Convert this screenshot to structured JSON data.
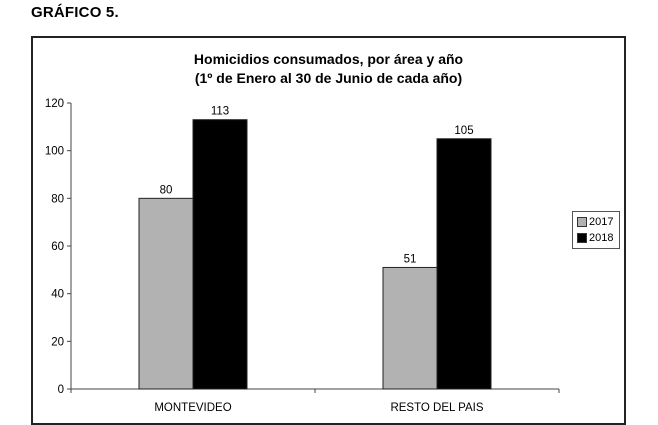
{
  "heading": "GRÁFICO 5.",
  "chart_data": {
    "type": "bar",
    "title": "Homicidios consumados, por área y año",
    "subtitle": "(1º de Enero al 30 de Junio de cada año)",
    "categories": [
      "MONTEVIDEO",
      "RESTO DEL PAIS"
    ],
    "series": [
      {
        "name": "2017",
        "color": "#b2b2b2",
        "values": [
          80,
          51
        ]
      },
      {
        "name": "2018",
        "color": "#000000",
        "values": [
          113,
          105
        ]
      }
    ],
    "xlabel": "",
    "ylabel": "",
    "ylim": [
      0,
      120
    ],
    "yticks": [
      0,
      20,
      40,
      60,
      80,
      100,
      120
    ],
    "grid": false,
    "legend_position": "right",
    "data_labels": true
  }
}
